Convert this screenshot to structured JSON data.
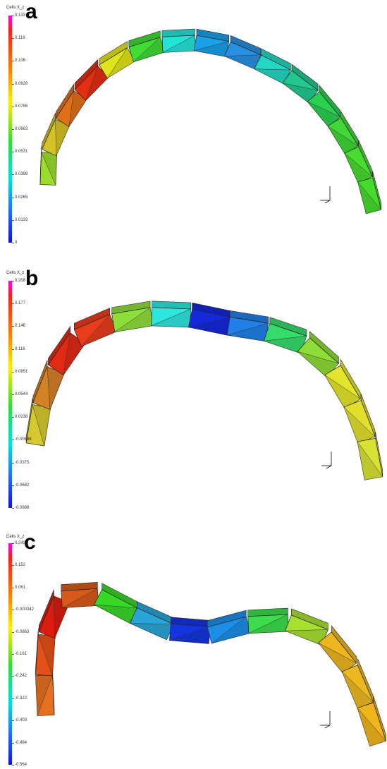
{
  "panels": [
    {
      "id": "a",
      "label": "a",
      "colorbar_title": "Cells X_z",
      "ticks": [
        "0.133",
        "0.119",
        "0.106",
        "0.0928",
        "0.0796",
        "0.0663",
        "0.0531",
        "0.0398",
        "0.0265",
        "0.0133",
        "0"
      ],
      "colors": [
        "#9bdb2c",
        "#d4c226",
        "#e07018",
        "#e52d12",
        "#e0e418",
        "#3fdc34",
        "#24e4d8",
        "#1aa0e8",
        "#2890e0",
        "#22d8c4",
        "#22c890",
        "#2ad050",
        "#40d838",
        "#48dc30",
        "#46dc2c"
      ]
    },
    {
      "id": "b",
      "label": "b",
      "colorbar_title": "Cells X_z",
      "ticks": [
        "0.208",
        "0.177",
        "0.146",
        "0.116",
        "0.0851",
        "0.0544",
        "0.0238",
        "-0.00686",
        "-0.0375",
        "-0.0682",
        "-0.0988"
      ],
      "colors": [
        "#d6c830",
        "#d48226",
        "#e02a14",
        "#e83c1c",
        "#8ede3a",
        "#2ee6dc",
        "#1428dc",
        "#2080e8",
        "#34dc6a",
        "#8edc36",
        "#e4e42a",
        "#e2e02c",
        "#d8e234"
      ]
    },
    {
      "id": "c",
      "label": "c",
      "colorbar_title": "Cells X_z",
      "ticks": [
        "0.242",
        "0.152",
        "0.061",
        "-0.000342",
        "-0.0863",
        "-0.161",
        "-0.242",
        "-0.322",
        "-0.403",
        "-0.484",
        "-0.564"
      ],
      "colors": [
        "#e47020",
        "#e25018",
        "#dc1c10",
        "#d85a1a",
        "#38d828",
        "#28a6d8",
        "#1434e0",
        "#1c8ee8",
        "#3cdc4c",
        "#a6e030",
        "#eeb61e",
        "#eeb820",
        "#f0b41c"
      ]
    }
  ]
}
